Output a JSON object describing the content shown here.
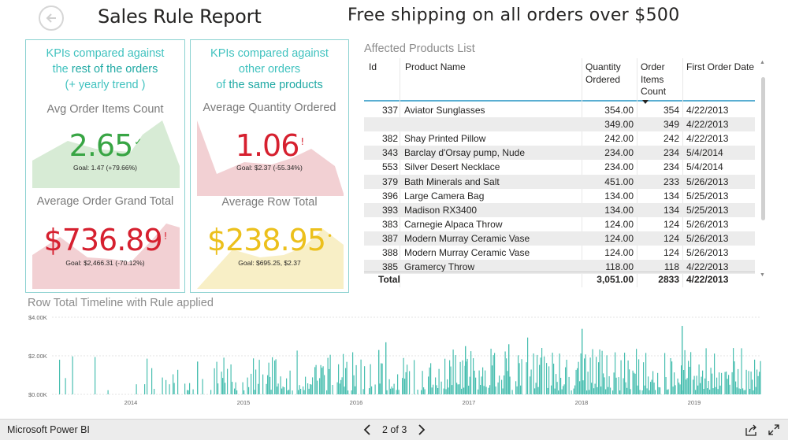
{
  "header": {
    "title": "Sales Rule Report",
    "banner": "Free shipping on all orders over $500"
  },
  "panels": [
    {
      "head": [
        "KPIs compared against",
        "the ",
        "rest of the orders",
        "(+ yearly trend )"
      ],
      "kpis": [
        {
          "label": "Avg Order Items Count",
          "value": "2.65",
          "indicator": "✓",
          "goal": "Goal: 1.47 (+79.66%)",
          "status": "good"
        },
        {
          "label": "Average Order Grand Total",
          "value": "$736.89",
          "indicator": "!",
          "goal": "Goal: $2,466.31 (-70.12%)",
          "status": "bad"
        }
      ]
    },
    {
      "head": [
        "KPIs compared against",
        "other orders",
        "of ",
        "the same products"
      ],
      "kpis": [
        {
          "label": "Average Quantity Ordered",
          "value": "1.06",
          "indicator": "!",
          "goal": "Goal: $2.37 (-55.34%)",
          "status": "bad"
        },
        {
          "label": "Average Row Total",
          "value": "$238.95",
          "indicator": "•",
          "goal": "Goal: $695.25, $2.37",
          "status": "neutral"
        }
      ]
    }
  ],
  "colors": {
    "good": "#38a544",
    "good_fill": "#d7ebd5",
    "bad": "#d6202f",
    "bad_fill": "#f2d0d3",
    "neutral": "#ecc01c",
    "neutral_fill": "#f8efc6",
    "accent": "#40c2bf",
    "bars": "#49bfb0"
  },
  "table": {
    "title": "Affected Products List",
    "columns": [
      "Id",
      "Product Name",
      "Quantity Ordered",
      "Order Items Count",
      "First Order Date"
    ],
    "sorted_column": "Order Items Count",
    "rows": [
      {
        "id": "337",
        "name": "Aviator Sunglasses",
        "qty": "354.00",
        "count": "354",
        "date": "4/22/2013"
      },
      {
        "id": "",
        "name": "",
        "qty": "349.00",
        "count": "349",
        "date": "4/22/2013"
      },
      {
        "id": "382",
        "name": "Shay Printed Pillow",
        "qty": "242.00",
        "count": "242",
        "date": "4/22/2013"
      },
      {
        "id": "343",
        "name": "Barclay d'Orsay pump, Nude",
        "qty": "234.00",
        "count": "234",
        "date": "5/4/2014"
      },
      {
        "id": "553",
        "name": "Silver Desert Necklace",
        "qty": "234.00",
        "count": "234",
        "date": "5/4/2014"
      },
      {
        "id": "379",
        "name": "Bath Minerals and Salt",
        "qty": "451.00",
        "count": "233",
        "date": "5/26/2013"
      },
      {
        "id": "396",
        "name": "Large Camera Bag",
        "qty": "134.00",
        "count": "134",
        "date": "5/25/2013"
      },
      {
        "id": "393",
        "name": "Madison RX3400",
        "qty": "134.00",
        "count": "134",
        "date": "5/25/2013"
      },
      {
        "id": "383",
        "name": "Carnegie Alpaca Throw",
        "qty": "124.00",
        "count": "124",
        "date": "5/26/2013"
      },
      {
        "id": "387",
        "name": "Modern Murray Ceramic Vase",
        "qty": "124.00",
        "count": "124",
        "date": "5/26/2013"
      },
      {
        "id": "388",
        "name": "Modern Murray Ceramic Vase",
        "qty": "124.00",
        "count": "124",
        "date": "5/26/2013"
      },
      {
        "id": "385",
        "name": "Gramercy Throw",
        "qty": "118.00",
        "count": "118",
        "date": "4/22/2013"
      }
    ],
    "total": {
      "label": "Total",
      "qty": "3,051.00",
      "count": "2833",
      "date": "4/22/2013"
    }
  },
  "timeline": {
    "title": "Row Total Timeline with Rule applied",
    "y_ticks": [
      "$4.00K",
      "$2.00K",
      "$0.00K"
    ],
    "x_ticks": [
      "2014",
      "2015",
      "2016",
      "2017",
      "2018",
      "2019"
    ]
  },
  "chart_data": {
    "type": "bar",
    "title": "Row Total Timeline with Rule applied",
    "xlabel": "",
    "ylabel": "",
    "ylim": [
      0,
      4000
    ],
    "x_range": [
      "2013-04",
      "2019-08"
    ],
    "y_tick_labels": [
      "$0.00K",
      "$2.00K",
      "$4.00K"
    ],
    "x_tick_labels": [
      "2014",
      "2015",
      "2016",
      "2017",
      "2018",
      "2019"
    ],
    "note_values": "Dense daily bars; values approx. mostly $300–$1,800 with peaks near $3,600 (late 2018).",
    "series": [
      {
        "values": []
      }
    ]
  },
  "footer": {
    "brand": "Microsoft Power BI",
    "page_indicator": "2 of 3"
  }
}
